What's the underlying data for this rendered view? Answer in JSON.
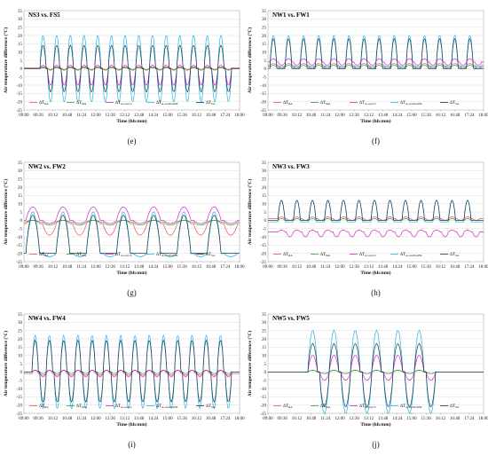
{
  "figure": {
    "ylabel": "Air temperature difference (°C)",
    "xlabel": "Time (hh:mm)",
    "y_ticks": [
      "-25",
      "-20",
      "-15",
      "-10",
      "-5",
      "0",
      "5",
      "10",
      "15",
      "20",
      "25",
      "30",
      "35"
    ],
    "x_ticks": [
      "09:00",
      "09:36",
      "10:12",
      "10:48",
      "11:24",
      "12:00",
      "12:36",
      "13:12",
      "13:48",
      "14:24",
      "15:00",
      "15:36",
      "16:12",
      "16:48",
      "17:24",
      "18:00"
    ],
    "legend": [
      {
        "text": "ΔT",
        "sub": "RA",
        "color": "#e8525a"
      },
      {
        "text": "ΔT",
        "sub": "MA",
        "color": "#2ca02c"
      },
      {
        "text": "ΔT",
        "sub": "A,out,CC",
        "color": "#e020c8"
      },
      {
        "text": "ΔT",
        "sub": "A,out,PostHC",
        "color": "#29b6e6"
      },
      {
        "text": "ΔT",
        "sub": "SA",
        "color": "#1a3a4a"
      }
    ]
  },
  "panels": [
    {
      "title": "NS3 vs. FS5",
      "label": "(e)"
    },
    {
      "title": "NW1 vs. FW1",
      "label": "(f)"
    },
    {
      "title": "NW2 vs. FW2",
      "label": "(g)"
    },
    {
      "title": "NW3 vs. FW3",
      "label": "(h)"
    },
    {
      "title": "NW4 vs. FW4",
      "label": "(i)"
    },
    {
      "title": "NW5 vs. FW5",
      "label": "(j)"
    }
  ],
  "chart_data": [
    {
      "type": "line",
      "title": "NS3 vs. FS5",
      "xlabel": "Time (hh:mm)",
      "ylabel": "Air temperature difference (°C)",
      "ylim": [
        -25,
        35
      ],
      "xlim": [
        "09:00",
        "18:00"
      ],
      "grid": true,
      "legend_position": "bottom",
      "cycles": 14,
      "cycle_range": [
        "09:40",
        "17:40"
      ],
      "series": [
        {
          "name": "ΔT_RA",
          "color": "#e8525a",
          "baseline": 0.5,
          "peak": 1,
          "trough": -1
        },
        {
          "name": "ΔT_MA",
          "color": "#2ca02c",
          "baseline": 0,
          "peak": 0.5,
          "trough": -0.5
        },
        {
          "name": "ΔT_A,out,CC",
          "color": "#e020c8",
          "baseline": 0,
          "peak": 2,
          "trough": -10
        },
        {
          "name": "ΔT_A,out,PostHC",
          "color": "#29b6e6",
          "baseline": 0,
          "peak": 20,
          "trough": -20
        },
        {
          "name": "ΔT_SA",
          "color": "#1a3a4a",
          "baseline": 0,
          "peak": 14,
          "trough": -14
        }
      ]
    },
    {
      "type": "line",
      "title": "NW1 vs. FW1",
      "xlabel": "Time (hh:mm)",
      "ylabel": "Air temperature difference (°C)",
      "ylim": [
        -25,
        35
      ],
      "xlim": [
        "09:00",
        "18:00"
      ],
      "grid": true,
      "legend_position": "bottom",
      "cycles": 14,
      "cycle_range": [
        "09:05",
        "17:55"
      ],
      "series": [
        {
          "name": "ΔT_RA",
          "color": "#e8525a",
          "baseline": 2,
          "peak": 3,
          "trough": 1
        },
        {
          "name": "ΔT_MA",
          "color": "#2ca02c",
          "baseline": 1,
          "peak": 2,
          "trough": 0
        },
        {
          "name": "ΔT_A,out,CC",
          "color": "#e020c8",
          "baseline": 4,
          "peak": 6,
          "trough": 2
        },
        {
          "name": "ΔT_A,out,PostHC",
          "color": "#29b6e6",
          "baseline": 1,
          "peak": 20,
          "trough": 1
        },
        {
          "name": "ΔT_SA",
          "color": "#1a3a4a",
          "baseline": 0,
          "peak": 18,
          "trough": 0
        }
      ]
    },
    {
      "type": "line",
      "title": "NW2 vs. FW2",
      "xlabel": "Time (hh:mm)",
      "ylabel": "Air temperature difference (°C)",
      "ylim": [
        -25,
        35
      ],
      "xlim": [
        "09:00",
        "18:00"
      ],
      "grid": true,
      "legend_position": "bottom",
      "cycles": 7,
      "cycle_range": [
        "09:05",
        "17:55"
      ],
      "series": [
        {
          "name": "ΔT_RA",
          "color": "#e8525a",
          "baseline": -2,
          "peak": 0,
          "trough": -9
        },
        {
          "name": "ΔT_MA",
          "color": "#2ca02c",
          "baseline": -1,
          "peak": 0,
          "trough": -3
        },
        {
          "name": "ΔT_A,out,CC",
          "color": "#e020c8",
          "baseline": 0,
          "peak": 8,
          "trough": -2
        },
        {
          "name": "ΔT_A,out,PostHC",
          "color": "#29b6e6",
          "baseline": -20,
          "peak": 5,
          "trough": -22
        },
        {
          "name": "ΔT_SA",
          "color": "#1a3a4a",
          "baseline": -20,
          "peak": 3,
          "trough": -20
        }
      ]
    },
    {
      "type": "line",
      "title": "NW3 vs. FW3",
      "xlabel": "Time (hh:mm)",
      "ylabel": "Air temperature difference (°C)",
      "ylim": [
        -25,
        35
      ],
      "xlim": [
        "09:00",
        "18:00"
      ],
      "grid": true,
      "legend_position": "bottom",
      "cycles": 13,
      "cycle_range": [
        "09:25",
        "17:50"
      ],
      "series": [
        {
          "name": "ΔT_RA",
          "color": "#e8525a",
          "baseline": 1,
          "peak": 2,
          "trough": 0
        },
        {
          "name": "ΔT_MA",
          "color": "#2ca02c",
          "baseline": 0,
          "peak": 1,
          "trough": 0
        },
        {
          "name": "ΔT_A,out,CC",
          "color": "#e020c8",
          "baseline": -7,
          "peak": -6,
          "trough": -10
        },
        {
          "name": "ΔT_A,out,PostHC",
          "color": "#29b6e6",
          "baseline": -1,
          "peak": 12,
          "trough": -1
        },
        {
          "name": "ΔT_SA",
          "color": "#1a3a4a",
          "baseline": 0,
          "peak": 12,
          "trough": 0
        }
      ]
    },
    {
      "type": "line",
      "title": "NW4 vs. FW4",
      "xlabel": "Time (hh:mm)",
      "ylabel": "Air temperature difference (°C)",
      "ylim": [
        -25,
        35
      ],
      "xlim": [
        "09:00",
        "18:00"
      ],
      "grid": true,
      "legend_position": "bottom",
      "cycles": 14,
      "cycle_range": [
        "09:20",
        "17:40"
      ],
      "series": [
        {
          "name": "ΔT_RA",
          "color": "#e8525a",
          "baseline": -1,
          "peak": 1,
          "trough": -2
        },
        {
          "name": "ΔT_MA",
          "color": "#2ca02c",
          "baseline": 0,
          "peak": 1,
          "trough": -1
        },
        {
          "name": "ΔT_A,out,CC",
          "color": "#e020c8",
          "baseline": 0,
          "peak": 1,
          "trough": -3
        },
        {
          "name": "ΔT_A,out,PostHC",
          "color": "#29b6e6",
          "baseline": 0,
          "peak": 22,
          "trough": -22
        },
        {
          "name": "ΔT_SA",
          "color": "#1a3a4a",
          "baseline": 0,
          "peak": 19,
          "trough": -18
        }
      ]
    },
    {
      "type": "line",
      "title": "NW5 vs. FW5",
      "xlabel": "Time (hh:mm)",
      "ylabel": "Air temperature difference (°C)",
      "ylim": [
        -25,
        35
      ],
      "xlim": [
        "09:00",
        "18:00"
      ],
      "grid": true,
      "legend_position": "bottom",
      "cycles": 6,
      "cycle_range": [
        "10:40",
        "16:00"
      ],
      "series": [
        {
          "name": "ΔT_RA",
          "color": "#e8525a",
          "baseline": 0,
          "peak": 1,
          "trough": -1
        },
        {
          "name": "ΔT_MA",
          "color": "#2ca02c",
          "baseline": 0,
          "peak": 1,
          "trough": -1
        },
        {
          "name": "ΔT_A,out,CC",
          "color": "#e020c8",
          "baseline": 0,
          "peak": 10,
          "trough": -5
        },
        {
          "name": "ΔT_A,out,PostHC",
          "color": "#29b6e6",
          "baseline": 0,
          "peak": 25,
          "trough": -25
        },
        {
          "name": "ΔT_SA",
          "color": "#1a3a4a",
          "baseline": 0,
          "peak": 17,
          "trough": -21
        }
      ]
    }
  ]
}
